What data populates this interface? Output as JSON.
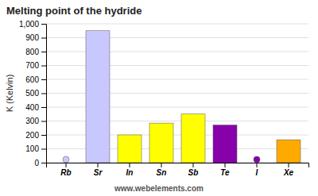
{
  "chart_data": {
    "type": "bar",
    "title": "Melting point of the hydride",
    "ylabel": "K (Kelvin)",
    "annotations": [
      "www.webelements.com"
    ],
    "categories": [
      "Rb",
      "Sr",
      "In",
      "Sn",
      "Sb",
      "Te",
      "I",
      "Xe"
    ],
    "values": [
      0,
      950,
      200,
      285,
      350,
      271,
      0,
      165
    ],
    "colors": [
      "#c8c8ff",
      "#c8c8ff",
      "#ffff00",
      "#ffff00",
      "#ffff00",
      "#8800aa",
      "#8800aa",
      "#ffaa00"
    ],
    "ylim": [
      0,
      1000
    ],
    "yticks": [
      0,
      100,
      200,
      300,
      400,
      500,
      600,
      700,
      800,
      900,
      {
        "value": 1000,
        "label": "1,000"
      }
    ],
    "grid": true
  }
}
